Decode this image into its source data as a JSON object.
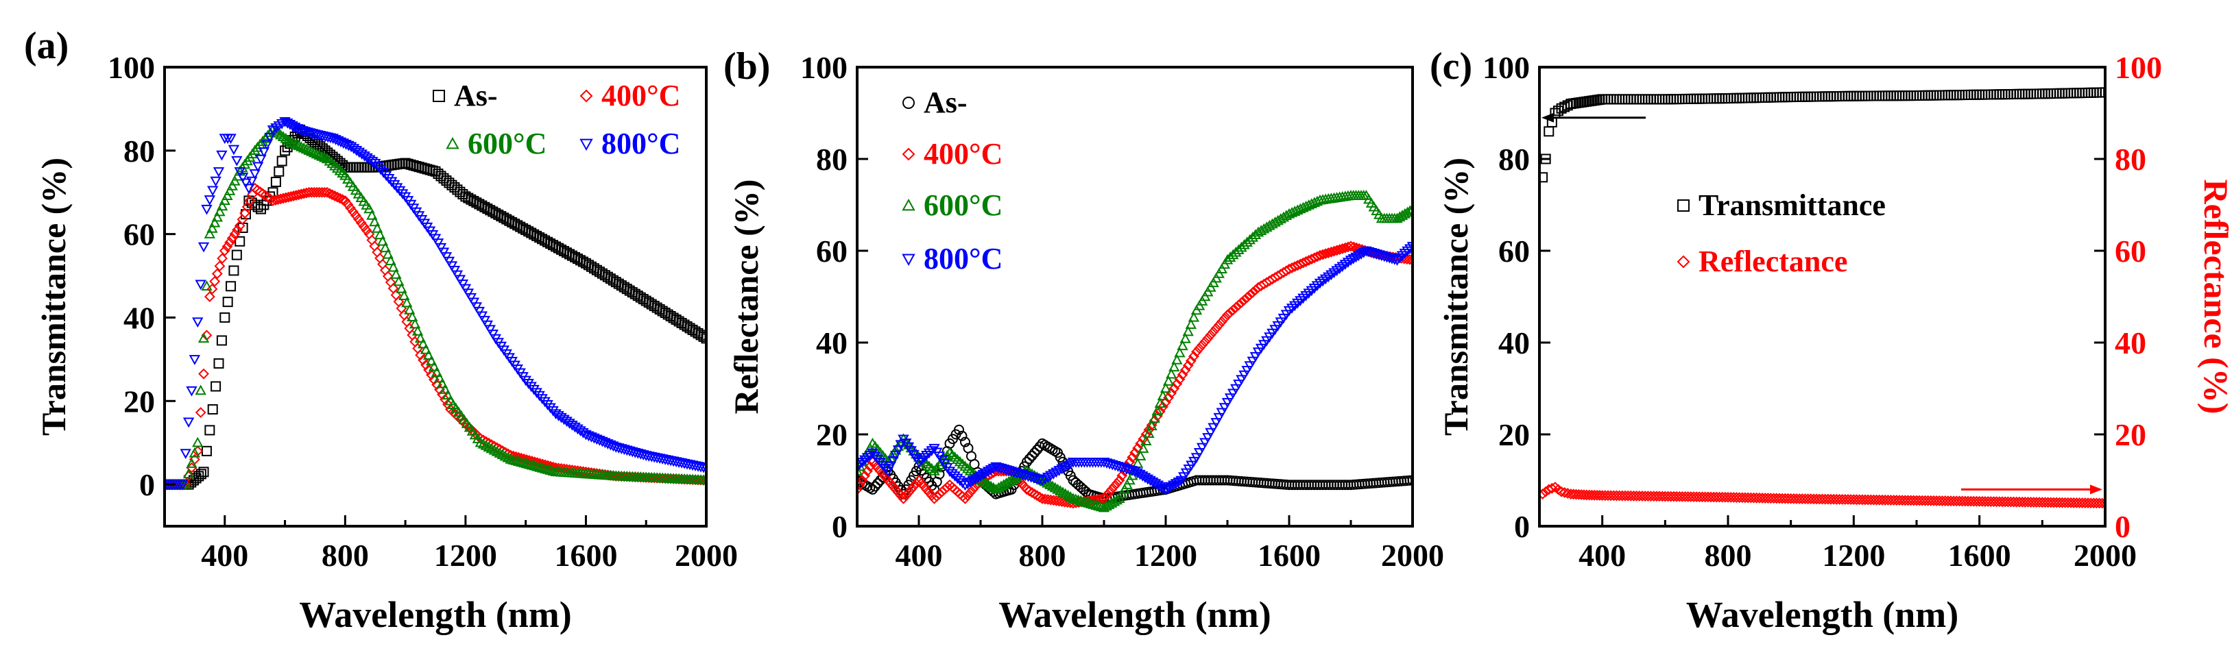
{
  "colors": {
    "black": "#000000",
    "red": "#ff0000",
    "green": "#008000",
    "blue": "#0000ff"
  },
  "chart_data": [
    {
      "type": "scatter",
      "panel_label": "(a)",
      "xlabel": "Wavelength (nm)",
      "ylabel": "Transmittance (%)",
      "xlim": [
        200,
        2000
      ],
      "ylim": [
        -10,
        100
      ],
      "xticks": [
        "400",
        "800",
        "1200",
        "1600",
        "2000"
      ],
      "yticks": [
        "0",
        "20",
        "40",
        "60",
        "80",
        "100"
      ],
      "legend": [
        "As-",
        "400°C",
        "600°C",
        "800°C"
      ],
      "series": [
        {
          "name": "As-",
          "color": "#000000",
          "marker": "square",
          "x": [
            200,
            280,
            330,
            360,
            400,
            440,
            480,
            520,
            560,
            600,
            650,
            700,
            750,
            800,
            900,
            1000,
            1100,
            1200,
            1400,
            1600,
            1800,
            2000
          ],
          "y": [
            0,
            0,
            3,
            18,
            40,
            55,
            68,
            66,
            70,
            80,
            85,
            82,
            79,
            76,
            76,
            77,
            75,
            69,
            61,
            53,
            44,
            35
          ]
        },
        {
          "name": "400°C",
          "color": "#ff0000",
          "marker": "diamond",
          "x": [
            200,
            270,
            310,
            350,
            400,
            450,
            500,
            560,
            620,
            680,
            740,
            800,
            880,
            960,
            1050,
            1150,
            1250,
            1350,
            1500,
            1700,
            2000
          ],
          "y": [
            0,
            0,
            8,
            45,
            56,
            62,
            71,
            68,
            69,
            70,
            70,
            68,
            60,
            47,
            31,
            18,
            11,
            7,
            4,
            2,
            1
          ]
        },
        {
          "name": "600°C",
          "color": "#008000",
          "marker": "triangle",
          "x": [
            200,
            270,
            310,
            350,
            400,
            450,
            500,
            560,
            620,
            680,
            740,
            800,
            880,
            960,
            1050,
            1150,
            1250,
            1350,
            1500,
            1700,
            2000
          ],
          "y": [
            0,
            0,
            10,
            60,
            68,
            75,
            80,
            85,
            82,
            80,
            78,
            74,
            66,
            52,
            35,
            20,
            10,
            6,
            3,
            2,
            1
          ]
        },
        {
          "name": "800°C",
          "color": "#0000ff",
          "marker": "triangle-down",
          "x": [
            200,
            260,
            300,
            340,
            380,
            400,
            420,
            450,
            480,
            520,
            560,
            600,
            650,
            700,
            760,
            820,
            900,
            1000,
            1100,
            1200,
            1300,
            1400,
            1500,
            1600,
            1700,
            1800,
            2000
          ],
          "y": [
            0,
            0,
            30,
            66,
            75,
            83,
            83,
            75,
            71,
            78,
            85,
            87,
            85,
            84,
            83,
            81,
            77,
            69,
            59,
            47,
            35,
            25,
            17,
            12,
            9,
            7,
            4
          ]
        }
      ]
    },
    {
      "type": "scatter",
      "panel_label": "(b)",
      "xlabel": "Wavelength (nm)",
      "ylabel": "Reflectance (%)",
      "xlim": [
        200,
        2000
      ],
      "ylim": [
        0,
        100
      ],
      "xticks": [
        "400",
        "800",
        "1200",
        "1600",
        "2000"
      ],
      "yticks": [
        "0",
        "20",
        "40",
        "60",
        "80",
        "100"
      ],
      "legend": [
        "As-",
        "400°C",
        "600°C",
        "800°C"
      ],
      "series": [
        {
          "name": "As-",
          "color": "#000000",
          "marker": "circle",
          "x": [
            200,
            250,
            300,
            350,
            400,
            450,
            500,
            530,
            560,
            600,
            650,
            700,
            750,
            800,
            850,
            900,
            950,
            1000,
            1100,
            1200,
            1300,
            1400,
            1600,
            1800,
            2000
          ],
          "y": [
            10,
            8,
            12,
            7,
            13,
            8,
            18,
            21,
            17,
            10,
            7,
            8,
            14,
            18,
            16,
            10,
            7,
            6,
            7,
            8,
            10,
            10,
            9,
            9,
            10
          ]
        },
        {
          "name": "400°C",
          "color": "#ff0000",
          "marker": "diamond",
          "x": [
            200,
            250,
            300,
            350,
            400,
            450,
            500,
            550,
            600,
            650,
            700,
            750,
            800,
            900,
            1000,
            1050,
            1100,
            1200,
            1300,
            1400,
            1500,
            1600,
            1700,
            1800,
            1900,
            2000
          ],
          "y": [
            8,
            14,
            10,
            6,
            10,
            6,
            9,
            6,
            10,
            12,
            12,
            8,
            6,
            5,
            6,
            10,
            16,
            27,
            38,
            46,
            52,
            56,
            59,
            61,
            59,
            58
          ]
        },
        {
          "name": "600°C",
          "color": "#008000",
          "marker": "triangle",
          "x": [
            200,
            250,
            300,
            350,
            400,
            450,
            500,
            550,
            600,
            650,
            700,
            750,
            800,
            850,
            900,
            950,
            1000,
            1050,
            1100,
            1200,
            1300,
            1400,
            1500,
            1600,
            1700,
            1800,
            1850,
            1900,
            1950,
            2000
          ],
          "y": [
            12,
            18,
            14,
            19,
            15,
            12,
            16,
            13,
            10,
            8,
            10,
            12,
            10,
            8,
            6,
            5,
            4,
            6,
            12,
            30,
            47,
            58,
            64,
            68,
            71,
            72,
            72,
            67,
            67,
            69
          ]
        },
        {
          "name": "800°C",
          "color": "#0000ff",
          "marker": "triangle-down",
          "x": [
            200,
            250,
            300,
            350,
            400,
            450,
            500,
            550,
            600,
            650,
            700,
            800,
            900,
            1000,
            1100,
            1150,
            1200,
            1250,
            1300,
            1400,
            1500,
            1600,
            1700,
            1800,
            1850,
            1900,
            1950,
            2000
          ],
          "y": [
            13,
            16,
            12,
            19,
            14,
            17,
            12,
            9,
            11,
            13,
            12,
            10,
            14,
            14,
            12,
            10,
            8,
            10,
            15,
            27,
            38,
            47,
            53,
            58,
            60,
            59,
            58,
            61
          ]
        }
      ]
    },
    {
      "type": "scatter",
      "panel_label": "(c)",
      "xlabel": "Wavelength (nm)",
      "ylabel": "Transmittance (%)",
      "y2label": "Reflectance (%)",
      "xlim": [
        200,
        2000
      ],
      "ylim": [
        0,
        100
      ],
      "y2lim": [
        0,
        100
      ],
      "xticks": [
        "400",
        "800",
        "1200",
        "1600",
        "2000"
      ],
      "yticks": [
        "0",
        "20",
        "40",
        "60",
        "80",
        "100"
      ],
      "y2ticks": [
        "0",
        "20",
        "40",
        "60",
        "80",
        "100"
      ],
      "legend": [
        "Transmittance",
        "Reflectance"
      ],
      "series": [
        {
          "name": "Transmittance",
          "color": "#000000",
          "marker": "square",
          "axis": "left",
          "x": [
            210,
            220,
            230,
            240,
            250,
            270,
            300,
            350,
            400,
            500,
            600,
            800,
            1000,
            1200,
            1400,
            1600,
            1800,
            2000
          ],
          "y": [
            76,
            80,
            86,
            88,
            90,
            91,
            92,
            92.5,
            93,
            93,
            93,
            93.2,
            93.5,
            93.7,
            93.8,
            94,
            94.2,
            94.5
          ]
        },
        {
          "name": "Reflectance",
          "color": "#ff0000",
          "marker": "diamond",
          "axis": "right",
          "x": [
            210,
            230,
            250,
            270,
            300,
            350,
            400,
            600,
            800,
            1000,
            1200,
            1400,
            1600,
            1800,
            2000
          ],
          "y": [
            7,
            8,
            8.5,
            7.5,
            7,
            6.8,
            6.7,
            6.5,
            6.3,
            6,
            5.8,
            5.6,
            5.4,
            5.2,
            5
          ]
        }
      ]
    }
  ]
}
